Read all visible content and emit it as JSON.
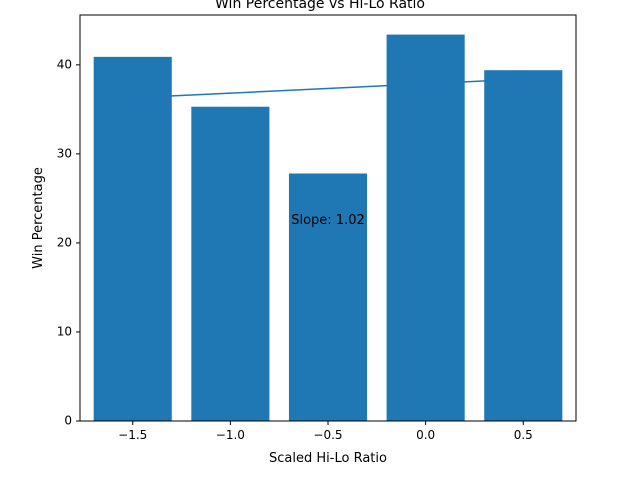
{
  "chart_data": {
    "type": "bar",
    "title": "Win Percentage vs Hi-Lo Ratio",
    "xlabel": "Scaled Hi-Lo Ratio",
    "ylabel": "Win Percentage",
    "x": [
      -1.5,
      -1.0,
      -0.5,
      0.0,
      0.5
    ],
    "values": [
      40.9,
      35.3,
      27.8,
      43.4,
      39.4
    ],
    "bar_width": 0.4,
    "xlim": [
      -1.77,
      0.77
    ],
    "ylim": [
      0,
      45.6
    ],
    "xticks": [
      -1.5,
      -1.0,
      -0.5,
      0.0,
      0.5
    ],
    "xtick_labels": [
      "−1.5",
      "−1.0",
      "−0.5",
      "0.0",
      "0.5"
    ],
    "yticks": [
      0,
      10,
      20,
      30,
      40
    ],
    "ytick_labels": [
      "0",
      "10",
      "20",
      "30",
      "40"
    ],
    "trend_line": {
      "x": [
        -1.5,
        0.5
      ],
      "y": [
        36.3,
        38.4
      ]
    },
    "annotation": {
      "text": "Slope: 1.02",
      "x": -0.5,
      "y": 22.5
    },
    "bar_color": "#1f77b4",
    "line_color": "#1f77b4",
    "grid": false,
    "legend": "none"
  }
}
